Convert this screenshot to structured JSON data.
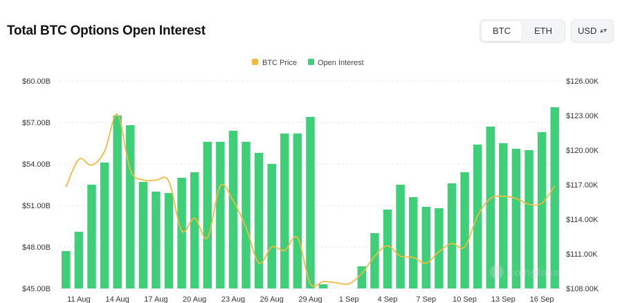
{
  "header": {
    "title": "Total BTC Options Open Interest",
    "asset_toggle": [
      {
        "label": "BTC",
        "active": true
      },
      {
        "label": "ETH",
        "active": false
      }
    ],
    "currency_select": {
      "value": "USD"
    }
  },
  "watermark": "coinglass",
  "colors": {
    "bar": "#3ecf78",
    "line": "#f0bb44",
    "grid": "#e6e6e6"
  },
  "chart_data": {
    "type": "bar",
    "legend": {
      "placement": "top-center",
      "items": [
        "BTC Price",
        "Open Interest"
      ]
    },
    "x_tick_labels": [
      "11 Aug",
      "14 Aug",
      "17 Aug",
      "20 Aug",
      "23 Aug",
      "26 Aug",
      "29 Aug",
      "1 Sep",
      "4 Sep",
      "7 Sep",
      "10 Sep",
      "13 Sep",
      "16 Sep"
    ],
    "dates": [
      "10 Aug",
      "11 Aug",
      "12 Aug",
      "13 Aug",
      "14 Aug",
      "15 Aug",
      "16 Aug",
      "17 Aug",
      "18 Aug",
      "19 Aug",
      "20 Aug",
      "21 Aug",
      "22 Aug",
      "23 Aug",
      "24 Aug",
      "25 Aug",
      "26 Aug",
      "27 Aug",
      "28 Aug",
      "29 Aug",
      "30 Aug",
      "31 Aug",
      "1 Sep",
      "2 Sep",
      "3 Sep",
      "4 Sep",
      "5 Sep",
      "6 Sep",
      "7 Sep",
      "8 Sep",
      "9 Sep",
      "10 Sep",
      "11 Sep",
      "12 Sep",
      "13 Sep",
      "14 Sep",
      "15 Sep",
      "16 Sep",
      "17 Sep"
    ],
    "series": [
      {
        "name": "Open Interest",
        "type": "bar",
        "axis": "left",
        "values": [
          47.7,
          49.1,
          52.5,
          54.1,
          57.5,
          56.8,
          52.7,
          52.0,
          51.9,
          53.0,
          53.4,
          55.6,
          55.6,
          56.4,
          55.6,
          54.8,
          54.0,
          56.2,
          56.2,
          57.4,
          45.3,
          45.0,
          44.9,
          46.6,
          49.0,
          50.7,
          52.5,
          51.6,
          50.9,
          50.8,
          52.6,
          53.4,
          55.4,
          56.7,
          55.5,
          55.1,
          55.0,
          56.3,
          58.1
        ]
      },
      {
        "name": "BTC Price",
        "type": "line",
        "axis": "right",
        "values": [
          116.8,
          119.2,
          118.7,
          119.9,
          123.1,
          118.3,
          117.4,
          117.4,
          117.3,
          113.0,
          114.1,
          112.4,
          116.9,
          115.6,
          113.3,
          110.2,
          111.6,
          111.3,
          112.4,
          108.4,
          108.6,
          108.5,
          108.4,
          109.3,
          110.8,
          111.7,
          110.8,
          110.7,
          110.2,
          111.2,
          111.9,
          111.6,
          114.3,
          115.8,
          116.0,
          115.8,
          115.3,
          115.4,
          116.9
        ]
      }
    ],
    "y_left": {
      "ticks": [
        "$45.00B",
        "$48.00B",
        "$51.00B",
        "$54.00B",
        "$57.00B",
        "$60.00B"
      ],
      "min": 45,
      "max": 60
    },
    "y_right": {
      "ticks": [
        "$108.00K",
        "$111.00K",
        "$114.00K",
        "$117.00K",
        "$120.00K",
        "$123.00K",
        "$126.00K"
      ],
      "min": 108,
      "max": 126
    },
    "grid": true
  }
}
